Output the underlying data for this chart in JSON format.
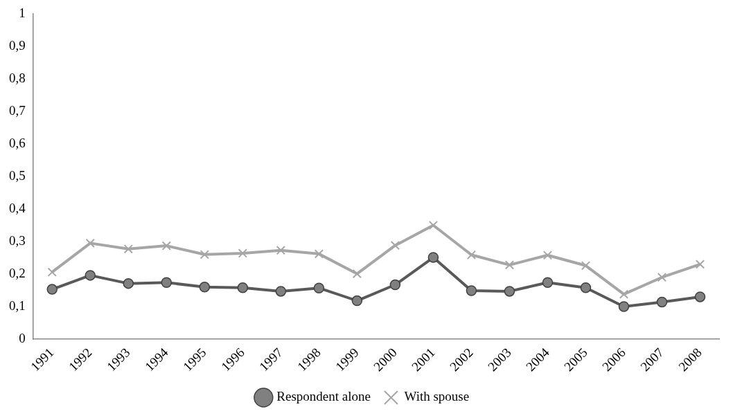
{
  "chart_data": {
    "type": "line",
    "categories": [
      "1991",
      "1992",
      "1993",
      "1994",
      "1995",
      "1996",
      "1997",
      "1998",
      "1999",
      "2000",
      "2001",
      "2002",
      "2003",
      "2004",
      "2005",
      "2006",
      "2007",
      "2008"
    ],
    "series": [
      {
        "name": "Respondent alone",
        "color": "#595959",
        "marker": "circle",
        "values": [
          0.153,
          0.196,
          0.171,
          0.174,
          0.16,
          0.158,
          0.147,
          0.157,
          0.118,
          0.167,
          0.251,
          0.149,
          0.147,
          0.174,
          0.158,
          0.1,
          0.114,
          0.13
        ]
      },
      {
        "name": "With spouse",
        "color": "#a6a6a6",
        "marker": "cross",
        "values": [
          0.206,
          0.295,
          0.277,
          0.287,
          0.26,
          0.264,
          0.273,
          0.262,
          0.201,
          0.288,
          0.35,
          0.259,
          0.228,
          0.258,
          0.226,
          0.138,
          0.19,
          0.23
        ]
      }
    ],
    "ylim": [
      0,
      1
    ],
    "yticks": [
      0,
      {
        "value": 0.1,
        "label": "0,1"
      },
      {
        "value": 0.2,
        "label": "0,2"
      },
      {
        "value": 0.3,
        "label": "0,3"
      },
      {
        "value": 0.4,
        "label": "0,4"
      },
      {
        "value": 0.5,
        "label": "0,5"
      },
      {
        "value": 0.6,
        "label": "0,6"
      },
      {
        "value": 0.7,
        "label": "0,7"
      },
      {
        "value": 0.8,
        "label": "0,8"
      },
      {
        "value": 0.9,
        "label": "0,9"
      },
      1
    ],
    "grid": false,
    "legend": "bottom",
    "line_style": "solid"
  }
}
